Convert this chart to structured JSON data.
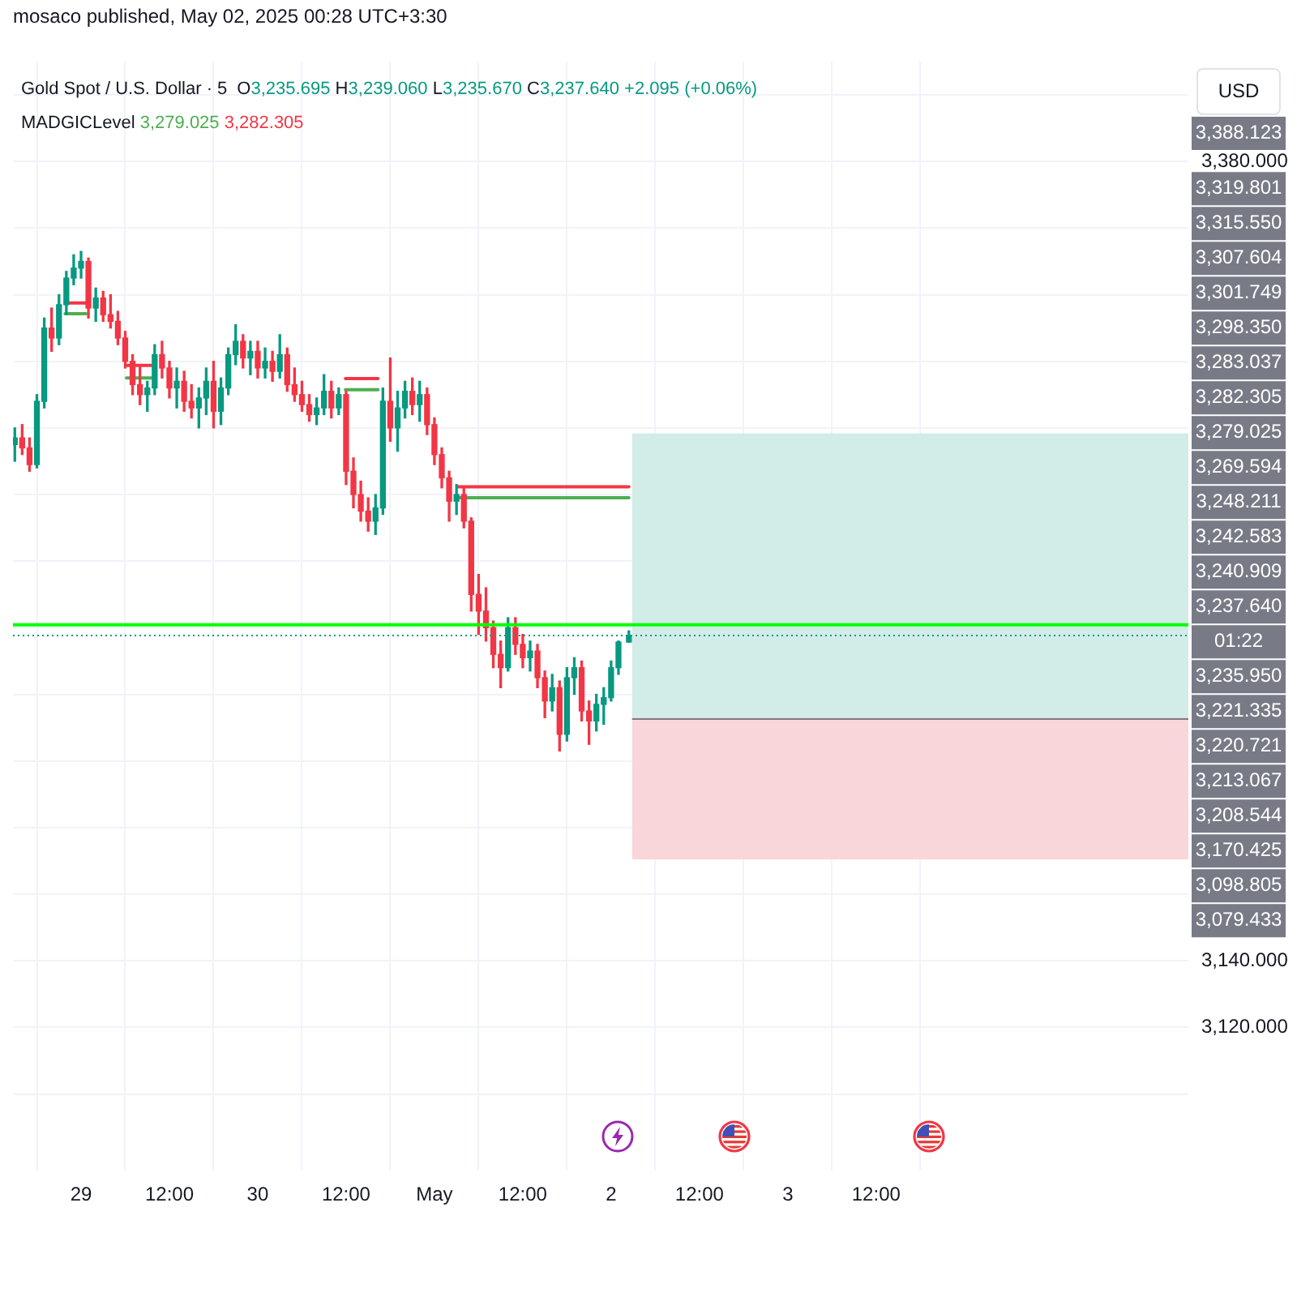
{
  "chart_data": {
    "type": "candlestick",
    "title": "Gold Spot / U.S. Dollar · 5",
    "subtitle": "O3,235.695 H3,239.060 L3,235.670 C3,237.640 +2.095 (+0.06%)",
    "ylabel": "USD",
    "grid": true,
    "annotations": [
      "mosaco published, May 02, 2025 00:28 UTC+3:30",
      "MADGICLevel 3,279.025 3,282.305",
      "3,388.123",
      "3,319.801",
      "3,315.550",
      "3,307.604",
      "3,301.749",
      "3,298.350",
      "3,283.037",
      "3,282.305",
      "3,279.025",
      "3,269.594",
      "3,248.211",
      "3,242.583",
      "3,240.909",
      "3,237.640",
      "01:22",
      "3,235.950",
      "3,221.335",
      "3,220.721",
      "3,213.067",
      "3,208.544",
      "3,170.425",
      "3,098.805",
      "3,079.433"
    ],
    "x": [
      "2025-04-28T15:00",
      "2025-04-28T16:00",
      "2025-04-28T17:00",
      "2025-04-28T18:00",
      "2025-04-28T19:00",
      "2025-04-28T20:00",
      "2025-04-28T21:00",
      "2025-04-28T22:00",
      "2025-04-28T23:00",
      "2025-04-29T00:00",
      "2025-04-29T01:00",
      "2025-04-29T02:00",
      "2025-04-29T03:00",
      "2025-04-29T04:00",
      "2025-04-29T05:00",
      "2025-04-29T06:00",
      "2025-04-29T07:00",
      "2025-04-29T08:00",
      "2025-04-29T09:00",
      "2025-04-29T10:00",
      "2025-04-29T11:00",
      "2025-04-29T12:00",
      "2025-04-29T13:00",
      "2025-04-29T14:00",
      "2025-04-29T15:00",
      "2025-04-29T16:00",
      "2025-04-29T17:00",
      "2025-04-29T18:00",
      "2025-04-29T19:00",
      "2025-04-29T20:00",
      "2025-04-29T21:00",
      "2025-04-29T22:00",
      "2025-04-29T23:00",
      "2025-04-30T00:00",
      "2025-04-30T01:00",
      "2025-04-30T02:00",
      "2025-04-30T03:00",
      "2025-04-30T04:00",
      "2025-04-30T05:00",
      "2025-04-30T06:00",
      "2025-04-30T07:00",
      "2025-04-30T08:00",
      "2025-04-30T09:00",
      "2025-04-30T10:00",
      "2025-04-30T11:00",
      "2025-04-30T12:00",
      "2025-04-30T13:00",
      "2025-04-30T14:00",
      "2025-04-30T15:00",
      "2025-04-30T16:00",
      "2025-04-30T17:00",
      "2025-04-30T18:00",
      "2025-04-30T19:00",
      "2025-04-30T20:00",
      "2025-04-30T21:00",
      "2025-04-30T22:00",
      "2025-04-30T23:00",
      "2025-05-01T00:00",
      "2025-05-01T01:00",
      "2025-05-01T02:00",
      "2025-05-01T03:00",
      "2025-05-01T04:00",
      "2025-05-01T05:00",
      "2025-05-01T06:00",
      "2025-05-01T07:00",
      "2025-05-01T08:00",
      "2025-05-01T09:00",
      "2025-05-01T10:00",
      "2025-05-01T11:00",
      "2025-05-01T12:00",
      "2025-05-01T13:00",
      "2025-05-01T14:00",
      "2025-05-01T15:00",
      "2025-05-01T16:00",
      "2025-05-01T17:00",
      "2025-05-01T18:00",
      "2025-05-01T19:00",
      "2025-05-01T20:00",
      "2025-05-01T21:00",
      "2025-05-01T22:00",
      "2025-05-01T23:00",
      "2025-05-02T00:00",
      "2025-05-02T01:00",
      "2025-05-02T02:25"
    ],
    "ohlc": [
      [
        3295,
        3300,
        3290,
        3297
      ],
      [
        3297,
        3301,
        3292,
        3294
      ],
      [
        3294,
        3297,
        3287,
        3289
      ],
      [
        3289,
        3310,
        3288,
        3308
      ],
      [
        3308,
        3333,
        3306,
        3330
      ],
      [
        3330,
        3336,
        3323,
        3327
      ],
      [
        3327,
        3340,
        3325,
        3337
      ],
      [
        3337,
        3347,
        3334,
        3345
      ],
      [
        3345,
        3352,
        3343,
        3348
      ],
      [
        3348,
        3353,
        3345,
        3350
      ],
      [
        3350,
        3351,
        3333,
        3336
      ],
      [
        3336,
        3342,
        3332,
        3339
      ],
      [
        3339,
        3341,
        3332,
        3334
      ],
      [
        3334,
        3340,
        3330,
        3332
      ],
      [
        3332,
        3335,
        3325,
        3327
      ],
      [
        3327,
        3329,
        3318,
        3320
      ],
      [
        3320,
        3322,
        3310,
        3313
      ],
      [
        3313,
        3319,
        3307,
        3310
      ],
      [
        3310,
        3314,
        3305,
        3312
      ],
      [
        3312,
        3325,
        3310,
        3322
      ],
      [
        3322,
        3326,
        3315,
        3318
      ],
      [
        3318,
        3320,
        3309,
        3312
      ],
      [
        3312,
        3318,
        3306,
        3314
      ],
      [
        3314,
        3317,
        3305,
        3308
      ],
      [
        3308,
        3313,
        3303,
        3306
      ],
      [
        3306,
        3312,
        3300,
        3309
      ],
      [
        3309,
        3318,
        3304,
        3314
      ],
      [
        3314,
        3320,
        3300,
        3305
      ],
      [
        3305,
        3315,
        3301,
        3312
      ],
      [
        3312,
        3324,
        3310,
        3322
      ],
      [
        3322,
        3331,
        3319,
        3326
      ],
      [
        3326,
        3328,
        3318,
        3321
      ],
      [
        3321,
        3326,
        3316,
        3323
      ],
      [
        3323,
        3326,
        3315,
        3318
      ],
      [
        3318,
        3324,
        3315,
        3320
      ],
      [
        3320,
        3323,
        3314,
        3317
      ],
      [
        3317,
        3328,
        3315,
        3322
      ],
      [
        3322,
        3324,
        3311,
        3313
      ],
      [
        3313,
        3318,
        3308,
        3310
      ],
      [
        3310,
        3314,
        3305,
        3307
      ],
      [
        3307,
        3310,
        3302,
        3304
      ],
      [
        3304,
        3309,
        3301,
        3306
      ],
      [
        3306,
        3316,
        3304,
        3311
      ],
      [
        3311,
        3314,
        3303,
        3306
      ],
      [
        3306,
        3312,
        3304,
        3310
      ],
      [
        3310,
        3311,
        3283,
        3287
      ],
      [
        3287,
        3291,
        3276,
        3280
      ],
      [
        3280,
        3284,
        3272,
        3275
      ],
      [
        3275,
        3279,
        3269,
        3272
      ],
      [
        3272,
        3280,
        3268,
        3276
      ],
      [
        3276,
        3312,
        3274,
        3308
      ],
      [
        3308,
        3321,
        3296,
        3300
      ],
      [
        3300,
        3311,
        3293,
        3306
      ],
      [
        3306,
        3314,
        3303,
        3311
      ],
      [
        3311,
        3315,
        3304,
        3307
      ],
      [
        3307,
        3314,
        3302,
        3310
      ],
      [
        3310,
        3312,
        3298,
        3301
      ],
      [
        3301,
        3303,
        3289,
        3292
      ],
      [
        3292,
        3294,
        3282,
        3285
      ],
      [
        3285,
        3287,
        3272,
        3278
      ],
      [
        3278,
        3283,
        3274,
        3280
      ],
      [
        3280,
        3282,
        3270,
        3272
      ],
      [
        3272,
        3273,
        3245,
        3250
      ],
      [
        3250,
        3256,
        3238,
        3245
      ],
      [
        3245,
        3252,
        3236,
        3240
      ],
      [
        3240,
        3242,
        3228,
        3232
      ],
      [
        3232,
        3236,
        3222,
        3228
      ],
      [
        3228,
        3243,
        3227,
        3240
      ],
      [
        3240,
        3243,
        3232,
        3235
      ],
      [
        3235,
        3238,
        3228,
        3231
      ],
      [
        3231,
        3236,
        3227,
        3233
      ],
      [
        3233,
        3235,
        3222,
        3225
      ],
      [
        3225,
        3227,
        3213,
        3218
      ],
      [
        3218,
        3226,
        3215,
        3222
      ],
      [
        3222,
        3224,
        3203,
        3208
      ],
      [
        3208,
        3228,
        3206,
        3225
      ],
      [
        3225,
        3231,
        3220,
        3228
      ],
      [
        3228,
        3230,
        3212,
        3215
      ],
      [
        3215,
        3218,
        3205,
        3212
      ],
      [
        3212,
        3220,
        3209,
        3217
      ],
      [
        3217,
        3222,
        3211,
        3219
      ],
      [
        3219,
        3230,
        3218,
        3228
      ],
      [
        3228,
        3236,
        3226,
        3235.7
      ],
      [
        3235.695,
        3239.06,
        3235.67,
        3237.64
      ]
    ],
    "colors": [
      "#089981",
      "#f23645",
      "#f23645",
      "#089981",
      "#089981",
      "#f23645",
      "#089981",
      "#089981",
      "#089981",
      "#089981",
      "#f23645",
      "#089981",
      "#f23645",
      "#f23645",
      "#f23645",
      "#f23645",
      "#f23645",
      "#f23645",
      "#089981",
      "#089981",
      "#f23645",
      "#f23645",
      "#089981",
      "#f23645",
      "#f23645",
      "#089981",
      "#089981",
      "#f23645",
      "#089981",
      "#089981",
      "#089981",
      "#f23645",
      "#089981",
      "#f23645",
      "#089981",
      "#f23645",
      "#089981",
      "#f23645",
      "#f23645",
      "#f23645",
      "#f23645",
      "#089981",
      "#089981",
      "#f23645",
      "#089981",
      "#f23645",
      "#f23645",
      "#f23645",
      "#f23645",
      "#089981",
      "#089981",
      "#f23645",
      "#089981",
      "#089981",
      "#f23645",
      "#089981",
      "#f23645",
      "#f23645",
      "#f23645",
      "#f23645",
      "#089981",
      "#f23645",
      "#f23645",
      "#f23645",
      "#f23645",
      "#f23645",
      "#f23645",
      "#089981",
      "#f23645",
      "#f23645",
      "#089981",
      "#f23645",
      "#f23645",
      "#089981",
      "#f23645",
      "#089981",
      "#089981",
      "#f23645",
      "#f23645",
      "#089981",
      "#089981",
      "#089981",
      "#089981",
      "#089981"
    ],
    "series": [
      {
        "type": "line",
        "color": "#4caf50",
        "x": [
          "2025-04-28T21:50",
          "2025-04-29T00:40",
          "2025-04-29T03:00",
          "2025-04-29T06:10",
          "2025-04-29T09:55",
          "2025-04-29T20:00",
          "2025-04-30T11:55",
          "2025-04-30T16:20",
          "2025-04-30T22:00",
          "2025-05-01T03:05",
          "2025-05-02T02:25"
        ],
        "values": [
          3334.3,
          3334.3,
          null,
          3315,
          3315,
          null,
          3311.5,
          3311.5,
          null,
          3279.025,
          3279.025
        ]
      },
      {
        "type": "line",
        "color": "#f23645",
        "x": [
          "2025-04-28T21:50",
          "2025-04-29T00:40",
          "2025-04-29T03:00",
          "2025-04-29T06:10",
          "2025-04-29T09:55",
          "2025-04-29T20:00",
          "2025-04-30T11:55",
          "2025-04-30T16:20",
          "2025-04-30T22:00",
          "2025-05-01T03:05",
          "2025-05-02T02:25"
        ],
        "values": [
          3337.5,
          3337.5,
          null,
          3318.8,
          3318.8,
          null,
          3314.8,
          3314.8,
          null,
          3282.305,
          3282.305
        ]
      }
    ],
    "ref_lines": [
      {
        "axis": "y",
        "value": 3240.909,
        "color": "#00ff00"
      },
      {
        "axis": "y",
        "value": 3237.64,
        "color": "#089981",
        "line_style": "dotted"
      }
    ],
    "bands": [
      {
        "axis": "y",
        "from": 3213.067,
        "to": 3298.35,
        "color": "#d2ece7"
      },
      {
        "axis": "y",
        "from": 3213.067,
        "to": 3170.425,
        "color": "#f9d6d9"
      }
    ],
    "xlim": [
      "2025-04-28T14:45",
      "2025-05-05T06:25"
    ],
    "xticks": [
      {
        "value": "2025-04-29T00:00",
        "label": "29"
      },
      {
        "value": "2025-04-29T12:00",
        "label": "12:00"
      },
      {
        "value": "2025-04-30T00:00",
        "label": "30"
      },
      {
        "value": "2025-04-30T12:00",
        "label": "12:00"
      },
      {
        "value": "2025-05-01T00:00",
        "label": "May"
      },
      {
        "value": "2025-05-01T12:00",
        "label": "12:00"
      },
      {
        "value": "2025-05-02T00:00",
        "label": "2"
      },
      {
        "value": "2025-05-02T12:00",
        "label": "12:00"
      },
      {
        "value": "2025-05-03T00:00",
        "label": "3"
      },
      {
        "value": "2025-05-03T12:00",
        "label": "12:00"
      }
    ],
    "ylim": [
      3077,
      3410
    ],
    "yticks": [
      {
        "value": 3100,
        "label": null
      },
      {
        "value": 3120,
        "label": "3,120.000"
      },
      {
        "value": 3140,
        "label": "3,140.000"
      },
      {
        "value": 3160,
        "label": null
      },
      {
        "value": 3180,
        "label": null
      },
      {
        "value": 3200,
        "label": null
      },
      {
        "value": 3220,
        "label": null
      },
      {
        "value": 3240,
        "label": null
      },
      {
        "value": 3260,
        "label": null
      },
      {
        "value": 3280,
        "label": null
      },
      {
        "value": 3300,
        "label": null
      },
      {
        "value": 3320,
        "label": null
      },
      {
        "value": 3340,
        "label": null
      },
      {
        "value": 3360,
        "label": null
      },
      {
        "value": 3380,
        "label": "3,380.000"
      },
      {
        "value": 3400,
        "label": null
      }
    ]
  }
}
